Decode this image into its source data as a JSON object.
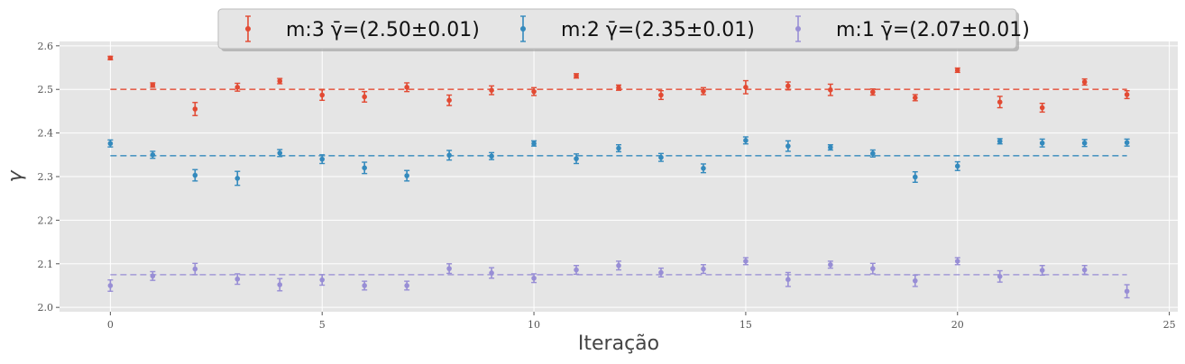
{
  "chart_data": {
    "type": "scatter",
    "xlabel": "Iteração",
    "ylabel": "γ",
    "xlim": [
      -1.2,
      25.2
    ],
    "ylim": [
      1.99,
      2.61
    ],
    "xticks": [
      0,
      5,
      10,
      15,
      20,
      25
    ],
    "yticks": [
      2.0,
      2.1,
      2.2,
      2.3,
      2.4,
      2.5,
      2.6
    ],
    "xtick_labels": [
      "0",
      "5",
      "10",
      "15",
      "20",
      "25"
    ],
    "ytick_labels": [
      "2.0",
      "2.1",
      "2.2",
      "2.3",
      "2.4",
      "2.5",
      "2.6"
    ],
    "grid": true,
    "legend_position": "top-center",
    "x": [
      0,
      1,
      2,
      3,
      4,
      5,
      6,
      7,
      8,
      9,
      10,
      11,
      12,
      13,
      14,
      15,
      16,
      17,
      18,
      19,
      20,
      21,
      22,
      23,
      24
    ],
    "series": [
      {
        "name": "m:3 γ̄=(2.50±0.01)",
        "color": "#E24A33",
        "mean": 2.5,
        "values": [
          2.572,
          2.51,
          2.455,
          2.505,
          2.519,
          2.487,
          2.483,
          2.505,
          2.475,
          2.498,
          2.495,
          2.531,
          2.504,
          2.487,
          2.496,
          2.505,
          2.508,
          2.499,
          2.494,
          2.481,
          2.544,
          2.471,
          2.458,
          2.517,
          2.488
        ],
        "errors": [
          0.004,
          0.005,
          0.015,
          0.009,
          0.006,
          0.012,
          0.012,
          0.01,
          0.012,
          0.01,
          0.009,
          0.005,
          0.006,
          0.01,
          0.008,
          0.015,
          0.009,
          0.013,
          0.007,
          0.007,
          0.005,
          0.013,
          0.01,
          0.007,
          0.009
        ]
      },
      {
        "name": "m:2 γ̄=(2.35±0.01)",
        "color": "#348ABD",
        "mean": 2.348,
        "values": [
          2.376,
          2.35,
          2.303,
          2.296,
          2.354,
          2.34,
          2.32,
          2.302,
          2.349,
          2.347,
          2.376,
          2.341,
          2.365,
          2.344,
          2.319,
          2.383,
          2.37,
          2.367,
          2.353,
          2.299,
          2.324,
          2.381,
          2.377,
          2.377,
          2.378
        ],
        "errors": [
          0.008,
          0.008,
          0.013,
          0.016,
          0.008,
          0.01,
          0.013,
          0.012,
          0.011,
          0.008,
          0.006,
          0.011,
          0.008,
          0.009,
          0.01,
          0.008,
          0.012,
          0.006,
          0.008,
          0.012,
          0.01,
          0.006,
          0.009,
          0.008,
          0.008
        ]
      },
      {
        "name": "m:1 γ̄=(2.07±0.01)",
        "color": "#988ED5",
        "mean": 2.075,
        "values": [
          2.05,
          2.072,
          2.088,
          2.065,
          2.052,
          2.063,
          2.05,
          2.05,
          2.089,
          2.079,
          2.067,
          2.086,
          2.096,
          2.08,
          2.088,
          2.106,
          2.064,
          2.098,
          2.089,
          2.061,
          2.106,
          2.071,
          2.085,
          2.086,
          2.037
        ],
        "errors": [
          0.013,
          0.01,
          0.013,
          0.012,
          0.014,
          0.012,
          0.01,
          0.01,
          0.011,
          0.012,
          0.01,
          0.01,
          0.01,
          0.01,
          0.01,
          0.008,
          0.016,
          0.008,
          0.012,
          0.013,
          0.008,
          0.013,
          0.011,
          0.01,
          0.015
        ]
      }
    ]
  }
}
